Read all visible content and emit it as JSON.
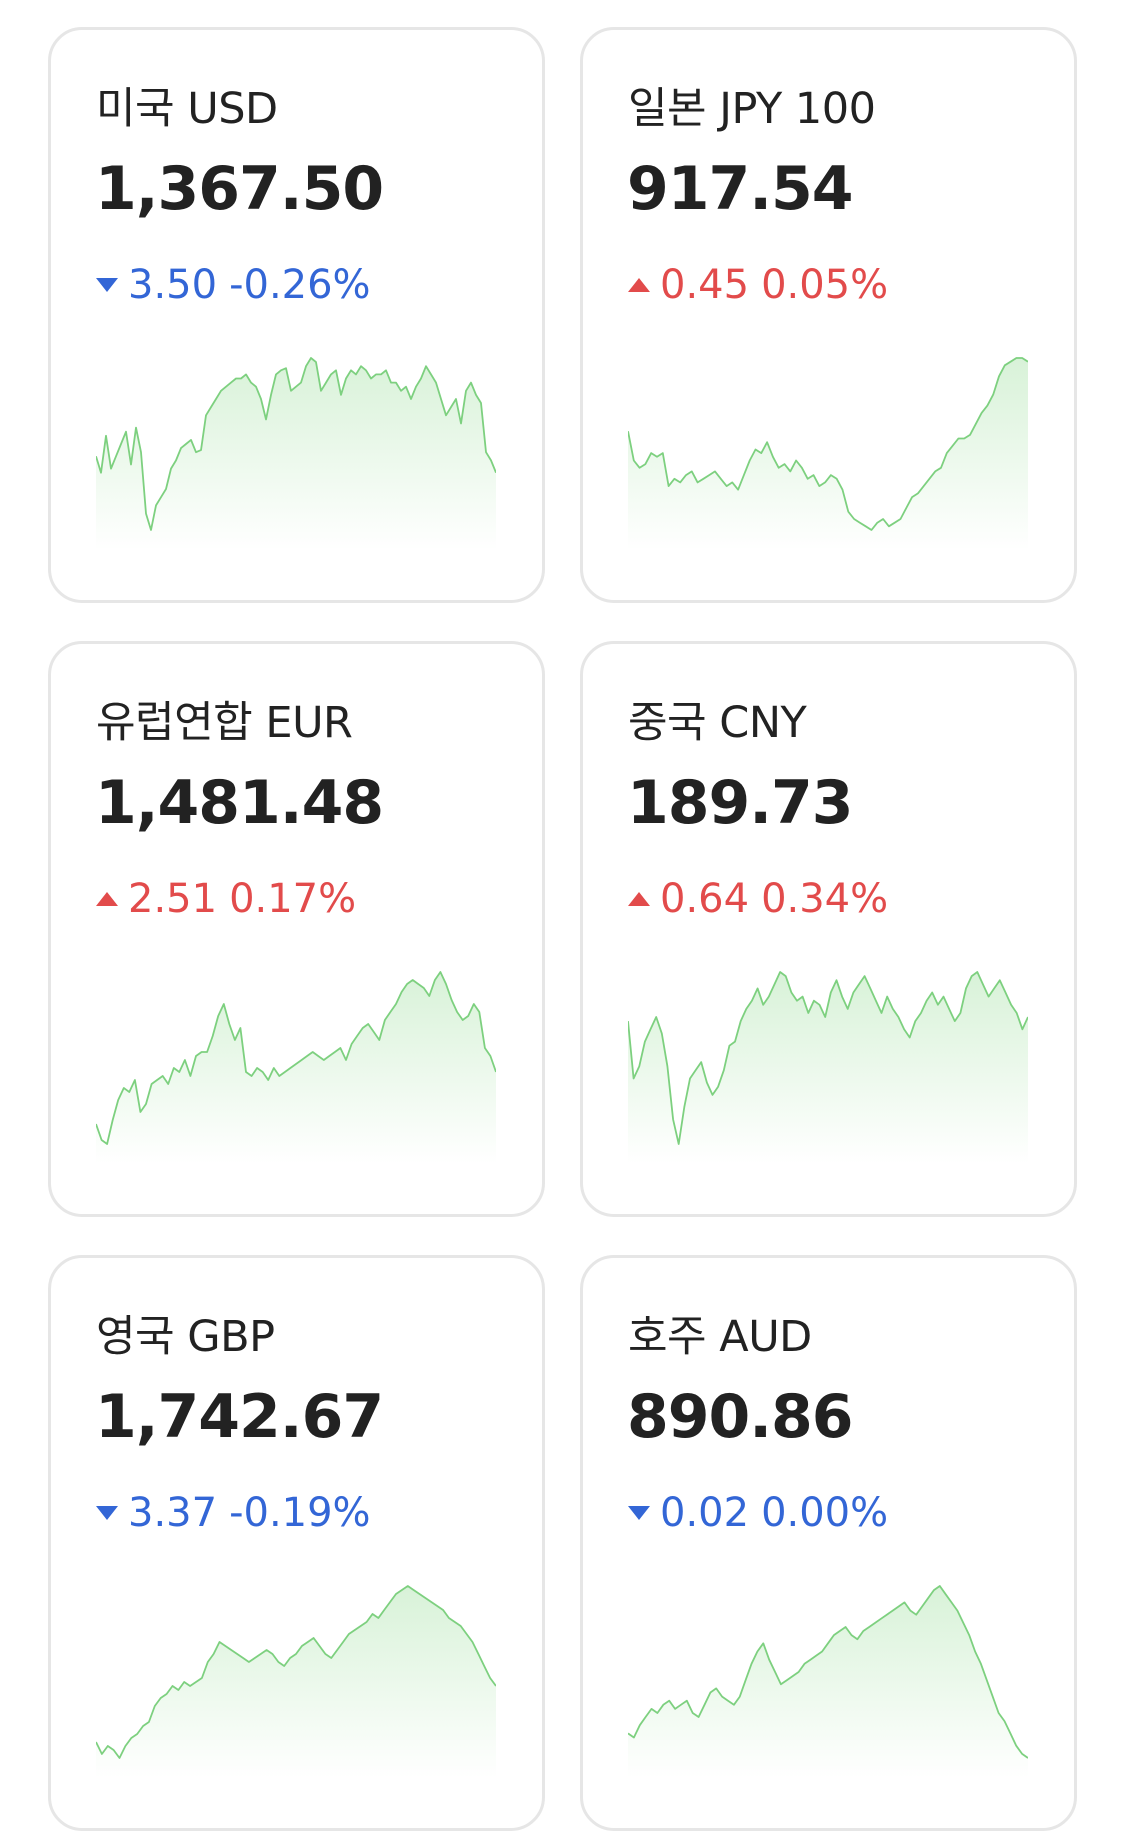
{
  "cards": [
    {
      "name": "미국 USD",
      "rate": "1,367.50",
      "direction": "down",
      "change": "3.50",
      "percent": "-0.26%",
      "spark": [
        52,
        44,
        62,
        46,
        52,
        58,
        64,
        48,
        66,
        54,
        24,
        16,
        28,
        32,
        36,
        46,
        50,
        56,
        58,
        60,
        54,
        55,
        72,
        76,
        80,
        84,
        86,
        88,
        90,
        90,
        92,
        88,
        86,
        80,
        70,
        82,
        92,
        94,
        95,
        84,
        86,
        88,
        96,
        100,
        98,
        84,
        88,
        92,
        94,
        82,
        90,
        94,
        92,
        96,
        94,
        90,
        92,
        92,
        94,
        88,
        88,
        84,
        86,
        80,
        86,
        90,
        96,
        92,
        88,
        80,
        72,
        76,
        80,
        68,
        84,
        88,
        82,
        78,
        54,
        50,
        44
      ]
    },
    {
      "name": "일본 JPY 100",
      "rate": "917.54",
      "direction": "up",
      "change": "0.45",
      "percent": "0.05%",
      "spark": [
        60,
        44,
        40,
        42,
        48,
        46,
        48,
        30,
        34,
        32,
        36,
        38,
        32,
        34,
        36,
        38,
        34,
        30,
        32,
        28,
        36,
        44,
        50,
        48,
        54,
        46,
        40,
        42,
        38,
        44,
        40,
        34,
        36,
        30,
        32,
        36,
        34,
        28,
        16,
        12,
        10,
        8,
        6,
        10,
        12,
        8,
        10,
        12,
        18,
        24,
        26,
        30,
        34,
        38,
        40,
        48,
        52,
        56,
        56,
        58,
        64,
        70,
        74,
        80,
        90,
        96,
        98,
        100,
        100,
        98
      ]
    },
    {
      "name": "유럽연합 EUR",
      "rate": "1,481.48",
      "direction": "up",
      "change": "2.51",
      "percent": "0.17%",
      "spark": [
        24,
        16,
        14,
        26,
        36,
        42,
        40,
        46,
        30,
        34,
        44,
        46,
        48,
        44,
        52,
        50,
        56,
        48,
        58,
        60,
        60,
        68,
        78,
        84,
        74,
        66,
        72,
        50,
        48,
        52,
        50,
        46,
        52,
        48,
        50,
        52,
        54,
        56,
        58,
        60,
        58,
        56,
        58,
        60,
        62,
        56,
        64,
        68,
        72,
        74,
        70,
        66,
        76,
        80,
        84,
        90,
        94,
        96,
        94,
        92,
        88,
        96,
        100,
        94,
        86,
        80,
        76,
        78,
        84,
        80,
        62,
        58,
        50
      ]
    },
    {
      "name": "중국 CNY",
      "rate": "189.73",
      "direction": "up",
      "change": "0.64",
      "percent": "0.34%",
      "spark": [
        76,
        48,
        54,
        66,
        72,
        78,
        70,
        54,
        28,
        16,
        34,
        48,
        52,
        56,
        46,
        40,
        44,
        52,
        64,
        66,
        76,
        82,
        86,
        92,
        84,
        88,
        94,
        100,
        98,
        90,
        86,
        88,
        80,
        86,
        84,
        78,
        90,
        96,
        88,
        82,
        90,
        94,
        98,
        92,
        86,
        80,
        88,
        82,
        78,
        72,
        68,
        76,
        80,
        86,
        90,
        84,
        88,
        82,
        76,
        80,
        92,
        98,
        100,
        94,
        88,
        92,
        96,
        90,
        84,
        80,
        72,
        78
      ]
    },
    {
      "name": "영국 GBP",
      "rate": "1,742.67",
      "direction": "down",
      "change": "3.37",
      "percent": "-0.19%",
      "spark": [
        22,
        16,
        20,
        18,
        14,
        20,
        24,
        26,
        30,
        32,
        40,
        44,
        46,
        50,
        48,
        52,
        50,
        52,
        54,
        62,
        66,
        72,
        70,
        68,
        66,
        64,
        62,
        64,
        66,
        68,
        66,
        62,
        60,
        64,
        66,
        70,
        72,
        74,
        70,
        66,
        64,
        68,
        72,
        76,
        78,
        80,
        82,
        86,
        84,
        88,
        92,
        96,
        98,
        100,
        98,
        96,
        94,
        92,
        90,
        88,
        84,
        82,
        80,
        76,
        72,
        66,
        60,
        54,
        50
      ]
    },
    {
      "name": "호주 AUD",
      "rate": "890.86",
      "direction": "down",
      "change": "0.02",
      "percent": "0.00%",
      "spark": [
        26,
        24,
        30,
        34,
        38,
        36,
        40,
        42,
        38,
        40,
        42,
        36,
        34,
        40,
        46,
        48,
        44,
        42,
        40,
        44,
        52,
        60,
        66,
        70,
        62,
        56,
        50,
        52,
        54,
        56,
        60,
        62,
        64,
        66,
        70,
        74,
        76,
        78,
        74,
        72,
        76,
        78,
        80,
        82,
        84,
        86,
        88,
        90,
        86,
        84,
        88,
        92,
        96,
        98,
        94,
        90,
        86,
        80,
        74,
        66,
        60,
        52,
        44,
        36,
        32,
        26,
        20,
        16,
        14
      ]
    }
  ],
  "colors": {
    "down": "#3366d6",
    "up": "#e24b4b",
    "spark_line": "#7dd07f",
    "spark_fill_top": "#d8f2d8"
  }
}
